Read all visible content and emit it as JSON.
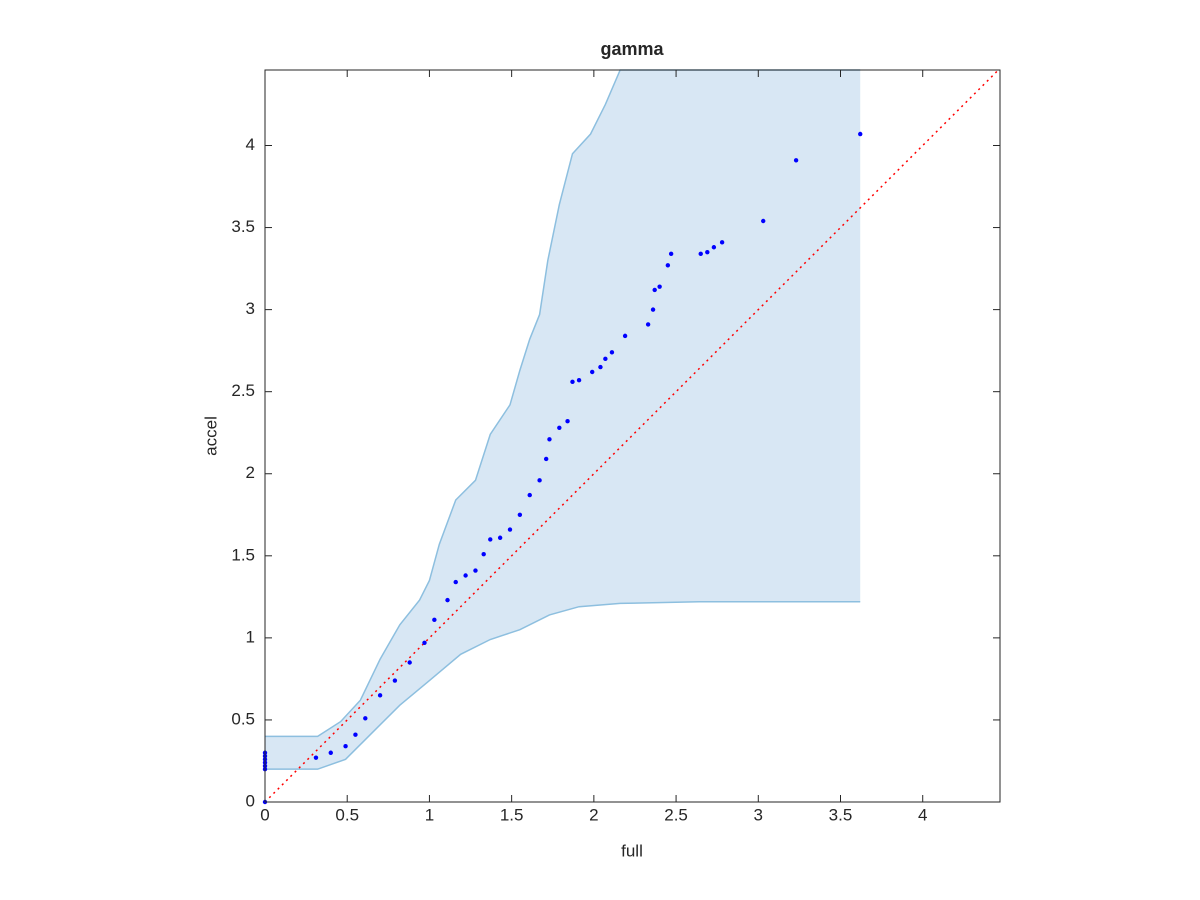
{
  "chart_data": {
    "type": "scatter",
    "title": "gamma",
    "x_label": "full",
    "y_label": "accel",
    "xlim": [
      0,
      4.47
    ],
    "ylim": [
      0,
      4.46
    ],
    "xticks": [
      0,
      0.5,
      1,
      1.5,
      2,
      2.5,
      3,
      3.5,
      4
    ],
    "yticks": [
      0,
      0.5,
      1,
      1.5,
      2,
      2.5,
      3,
      3.5,
      4
    ],
    "grid": false,
    "series": [
      {
        "color": "#0000ff",
        "x": [
          0,
          0,
          0,
          0,
          0,
          0,
          0,
          0.31,
          0.4,
          0.49,
          0.55,
          0.61,
          0.7,
          0.79,
          0.88,
          0.97,
          1.03,
          1.11,
          1.16,
          1.22,
          1.28,
          1.33,
          1.37,
          1.43,
          1.49,
          1.55,
          1.61,
          1.67,
          1.71,
          1.73,
          1.79,
          1.84,
          1.87,
          1.91,
          1.99,
          2.04,
          2.07,
          2.11,
          2.19,
          2.33,
          2.36,
          2.37,
          2.4,
          2.45,
          2.47,
          2.65,
          2.69,
          2.73,
          2.78,
          3.03,
          3.23,
          3.62
        ],
        "values": [
          0,
          0.2,
          0.22,
          0.24,
          0.26,
          0.28,
          0.3,
          0.27,
          0.3,
          0.34,
          0.41,
          0.51,
          0.65,
          0.74,
          0.85,
          0.97,
          1.11,
          1.23,
          1.34,
          1.38,
          1.41,
          1.51,
          1.6,
          1.61,
          1.66,
          1.75,
          1.87,
          1.96,
          2.09,
          2.21,
          2.28,
          2.32,
          2.56,
          2.57,
          2.62,
          2.65,
          2.7,
          2.74,
          2.84,
          2.91,
          3.0,
          3.12,
          3.14,
          3.27,
          3.34,
          3.34,
          3.35,
          3.38,
          3.41,
          3.54,
          3.91,
          4.07
        ]
      }
    ],
    "band": {
      "fill": "#d8e7f4",
      "edge": "#8dbfdf",
      "upper": {
        "x": [
          0,
          0.32,
          0.46,
          0.58,
          0.7,
          0.82,
          0.94,
          1.0,
          1.06,
          1.16,
          1.28,
          1.37,
          1.49,
          1.55,
          1.61,
          1.67,
          1.72,
          1.79,
          1.87,
          1.98,
          2.07,
          2.16,
          3.62
        ],
        "values": [
          0.4,
          0.4,
          0.49,
          0.62,
          0.87,
          1.08,
          1.23,
          1.35,
          1.57,
          1.84,
          1.96,
          2.24,
          2.42,
          2.63,
          2.82,
          2.97,
          3.3,
          3.64,
          3.95,
          4.07,
          4.25,
          4.46,
          4.46
        ]
      },
      "lower": {
        "x": [
          0,
          0.32,
          0.49,
          0.64,
          0.82,
          1.0,
          1.19,
          1.37,
          1.55,
          1.73,
          1.91,
          2.16,
          2.64,
          3.62
        ],
        "values": [
          0.2,
          0.2,
          0.26,
          0.41,
          0.59,
          0.74,
          0.9,
          0.99,
          1.05,
          1.14,
          1.19,
          1.21,
          1.22,
          1.22
        ]
      }
    },
    "reference_line": {
      "color": "#ff0000",
      "x": [
        0,
        4.47
      ],
      "values": [
        0,
        4.47
      ]
    }
  }
}
